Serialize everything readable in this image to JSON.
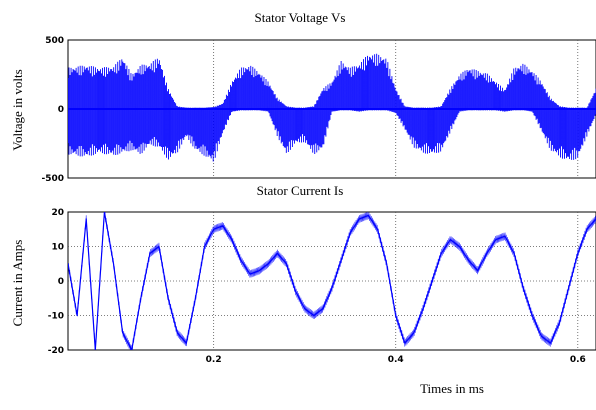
{
  "chart_data": [
    {
      "type": "line",
      "title": "Stator Voltage Vs",
      "ylabel": "Voltage in volts",
      "xlabel": "",
      "xlim": [
        0.04,
        0.62
      ],
      "ylim": [
        -500,
        500
      ],
      "yticks": [
        "500",
        "0",
        "-500"
      ],
      "xticks": [],
      "grid": true,
      "series": [
        {
          "color": "#0000ff",
          "x": [
            0.04,
            0.06,
            0.075,
            0.09,
            0.1,
            0.11,
            0.12,
            0.13,
            0.14,
            0.15,
            0.16,
            0.17,
            0.18,
            0.19,
            0.2,
            0.21,
            0.22,
            0.23,
            0.24,
            0.25,
            0.26,
            0.27,
            0.28,
            0.29,
            0.3,
            0.31,
            0.32,
            0.33,
            0.34,
            0.35,
            0.36,
            0.37,
            0.38,
            0.39,
            0.4,
            0.41,
            0.42,
            0.43,
            0.44,
            0.45,
            0.46,
            0.47,
            0.48,
            0.49,
            0.5,
            0.51,
            0.52,
            0.53,
            0.54,
            0.55,
            0.56,
            0.57,
            0.58,
            0.59,
            0.6,
            0.61,
            0.62
          ],
          "upper": [
            300,
            320,
            300,
            310,
            380,
            250,
            320,
            330,
            380,
            150,
            20,
            10,
            10,
            10,
            15,
            40,
            200,
            300,
            320,
            270,
            200,
            80,
            20,
            10,
            10,
            20,
            150,
            200,
            350,
            300,
            330,
            400,
            400,
            370,
            150,
            20,
            10,
            10,
            10,
            20,
            150,
            250,
            300,
            280,
            260,
            200,
            140,
            300,
            330,
            280,
            200,
            80,
            20,
            10,
            10,
            10,
            150
          ],
          "lower": [
            -330,
            -350,
            -320,
            -340,
            -320,
            -300,
            -330,
            -260,
            -280,
            -370,
            -320,
            -200,
            -300,
            -340,
            -390,
            -180,
            -20,
            -10,
            -10,
            -10,
            -20,
            -200,
            -330,
            -250,
            -240,
            -330,
            -290,
            -20,
            -10,
            -10,
            -20,
            -10,
            -10,
            -10,
            -30,
            -150,
            -280,
            -320,
            -330,
            -310,
            -170,
            -20,
            -10,
            -10,
            -10,
            -10,
            -20,
            -10,
            -10,
            -20,
            -160,
            -300,
            -350,
            -380,
            -360,
            -200,
            -40
          ]
        }
      ]
    },
    {
      "type": "line",
      "title": "Stator Current Is",
      "ylabel": "Current in Amps",
      "xlabel": "Times in ms",
      "xlim": [
        0.04,
        0.62
      ],
      "ylim": [
        -20,
        20
      ],
      "yticks": [
        "20",
        "10",
        "0",
        "-10",
        "-20"
      ],
      "xticks": [
        "0.2",
        "0.4",
        "0.6"
      ],
      "grid": true,
      "series": [
        {
          "color": "#0000ff",
          "x": [
            0.04,
            0.05,
            0.06,
            0.07,
            0.08,
            0.09,
            0.1,
            0.11,
            0.12,
            0.13,
            0.14,
            0.15,
            0.16,
            0.17,
            0.18,
            0.19,
            0.2,
            0.21,
            0.22,
            0.23,
            0.24,
            0.25,
            0.26,
            0.27,
            0.28,
            0.29,
            0.3,
            0.31,
            0.32,
            0.33,
            0.34,
            0.35,
            0.36,
            0.37,
            0.38,
            0.39,
            0.4,
            0.41,
            0.42,
            0.43,
            0.44,
            0.45,
            0.46,
            0.47,
            0.48,
            0.49,
            0.5,
            0.51,
            0.52,
            0.53,
            0.54,
            0.55,
            0.56,
            0.57,
            0.58,
            0.59,
            0.6,
            0.61,
            0.62
          ],
          "values": [
            5,
            -10,
            18,
            -20,
            20,
            5,
            -15,
            -20,
            -5,
            8,
            10,
            -5,
            -15,
            -18,
            -5,
            10,
            15,
            16,
            12,
            6,
            2,
            3,
            5,
            8,
            5,
            -3,
            -8,
            -10,
            -8,
            -2,
            6,
            14,
            18,
            19,
            15,
            5,
            -10,
            -18,
            -15,
            -8,
            0,
            8,
            12,
            10,
            6,
            3,
            8,
            12,
            13,
            8,
            -2,
            -10,
            -16,
            -18,
            -12,
            -2,
            8,
            15,
            18
          ]
        }
      ]
    }
  ]
}
